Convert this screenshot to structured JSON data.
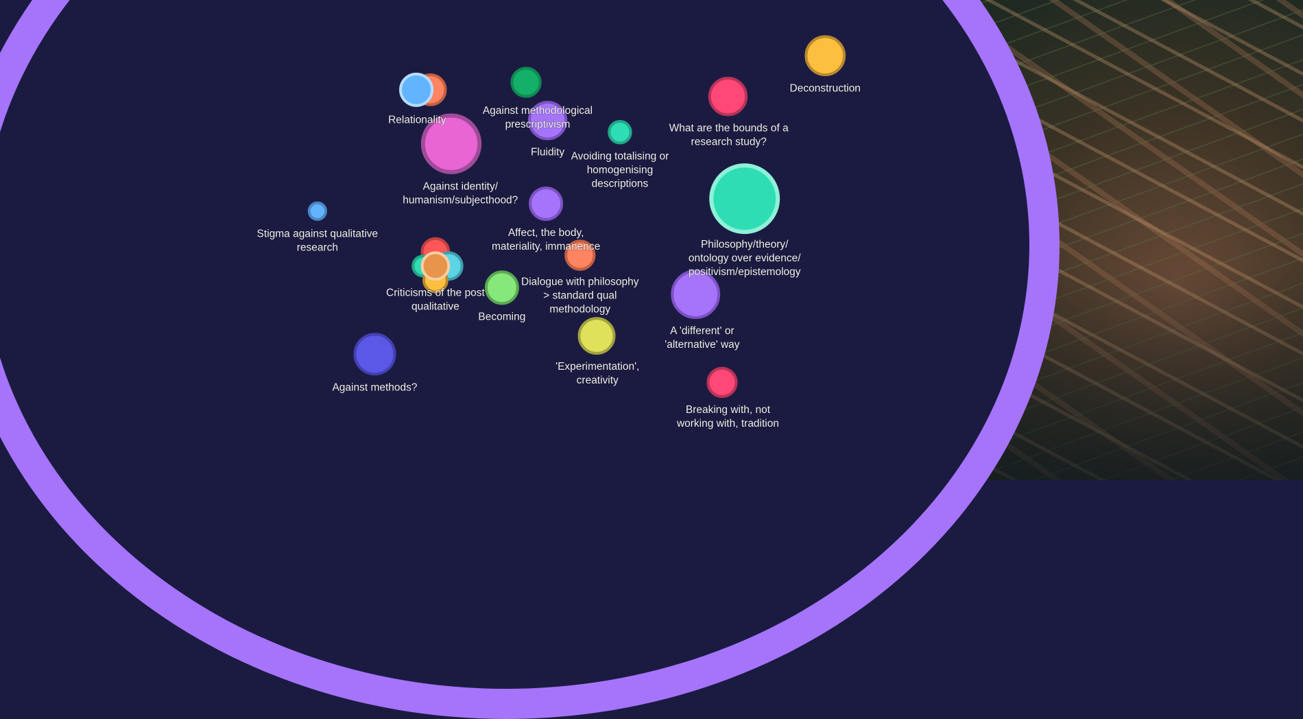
{
  "colors": {
    "background": "#1b1b42",
    "ring": "#a674fb"
  },
  "nodes": [
    {
      "id": "relationality-orange",
      "color": "#ff8462",
      "stroke": "#c5603f",
      "lines": []
    },
    {
      "id": "relationality",
      "color": "#63b4ff",
      "stroke": "#b6dcff",
      "lines": [
        "Relationality"
      ]
    },
    {
      "id": "against-methodological-prescriptivism",
      "color": "#14b06a",
      "stroke": "#0f8a52",
      "lines": [
        "Against methodological",
        "prescriptivism"
      ]
    },
    {
      "id": "fluidity",
      "color": "#a674fb",
      "stroke": "#7d52c4",
      "lines": [
        "Fluidity"
      ]
    },
    {
      "id": "against-identity",
      "color": "#e965d3",
      "stroke": "#a04b9a",
      "lines": [
        "Against identity/",
        "humanism/subjecthood?"
      ]
    },
    {
      "id": "avoiding-totalising",
      "color": "#2fddb5",
      "stroke": "#22a888",
      "lines": [
        "Avoiding totalising or",
        "homogenising",
        "descriptions"
      ]
    },
    {
      "id": "bounds-of-research",
      "color": "#ff4877",
      "stroke": "#b93358",
      "lines": [
        "What are the bounds of a",
        "research study?"
      ]
    },
    {
      "id": "deconstruction",
      "color": "#fdbf3f",
      "stroke": "#b88a2e",
      "lines": [
        "Deconstruction"
      ]
    },
    {
      "id": "philosophy-theory",
      "color": "#2fddb5",
      "stroke": "#8ff0d8",
      "lines": [
        "Philosophy/theory/",
        "ontology over evidence/",
        "positivism/epistemology"
      ]
    },
    {
      "id": "stigma",
      "color": "#63b4ff",
      "stroke": "#4a86c4",
      "lines": [
        "Stigma against qualitative",
        "research"
      ]
    },
    {
      "id": "affect-body",
      "color": "#a674fb",
      "stroke": "#7d52c4",
      "lines": [
        "Affect, the body,",
        "materiality, immanence"
      ]
    },
    {
      "id": "criticisms-red",
      "color": "#ff5757",
      "stroke": "#c24040",
      "lines": []
    },
    {
      "id": "criticisms-green",
      "color": "#2fddb5",
      "stroke": "#22a888",
      "lines": []
    },
    {
      "id": "criticisms-cyan",
      "color": "#5bd5e5",
      "stroke": "#3f9fae",
      "lines": []
    },
    {
      "id": "criticisms-yellow",
      "color": "#fdbf3f",
      "stroke": "#b88a2e",
      "lines": []
    },
    {
      "id": "dialogue-philosophy",
      "color": "#ff8462",
      "stroke": "#c5603f",
      "lines": [
        "Dialogue with philosophy",
        "> standard qual",
        "methodology"
      ]
    },
    {
      "id": "criticisms",
      "color": "#e8944a",
      "stroke": "#f7cfa6",
      "lines": [
        "Criticisms of the post",
        "qualitative"
      ]
    },
    {
      "id": "becoming",
      "color": "#86e87a",
      "stroke": "#5aa851",
      "lines": [
        "Becoming"
      ]
    },
    {
      "id": "different-alternative",
      "color": "#a674fb",
      "stroke": "#7d52c4",
      "lines": [
        "A 'different' or",
        "'alternative' way"
      ]
    },
    {
      "id": "experimentation",
      "color": "#dfe15a",
      "stroke": "#a3a43f",
      "lines": [
        "'Experimentation',",
        "creativity"
      ]
    },
    {
      "id": "against-methods",
      "color": "#5b58e8",
      "stroke": "#4340b0",
      "lines": [
        "Against methods?"
      ]
    },
    {
      "id": "breaking-with-tradition",
      "color": "#ff4877",
      "stroke": "#b93358",
      "lines": [
        "Breaking with, not",
        "working with, tradition"
      ]
    }
  ]
}
